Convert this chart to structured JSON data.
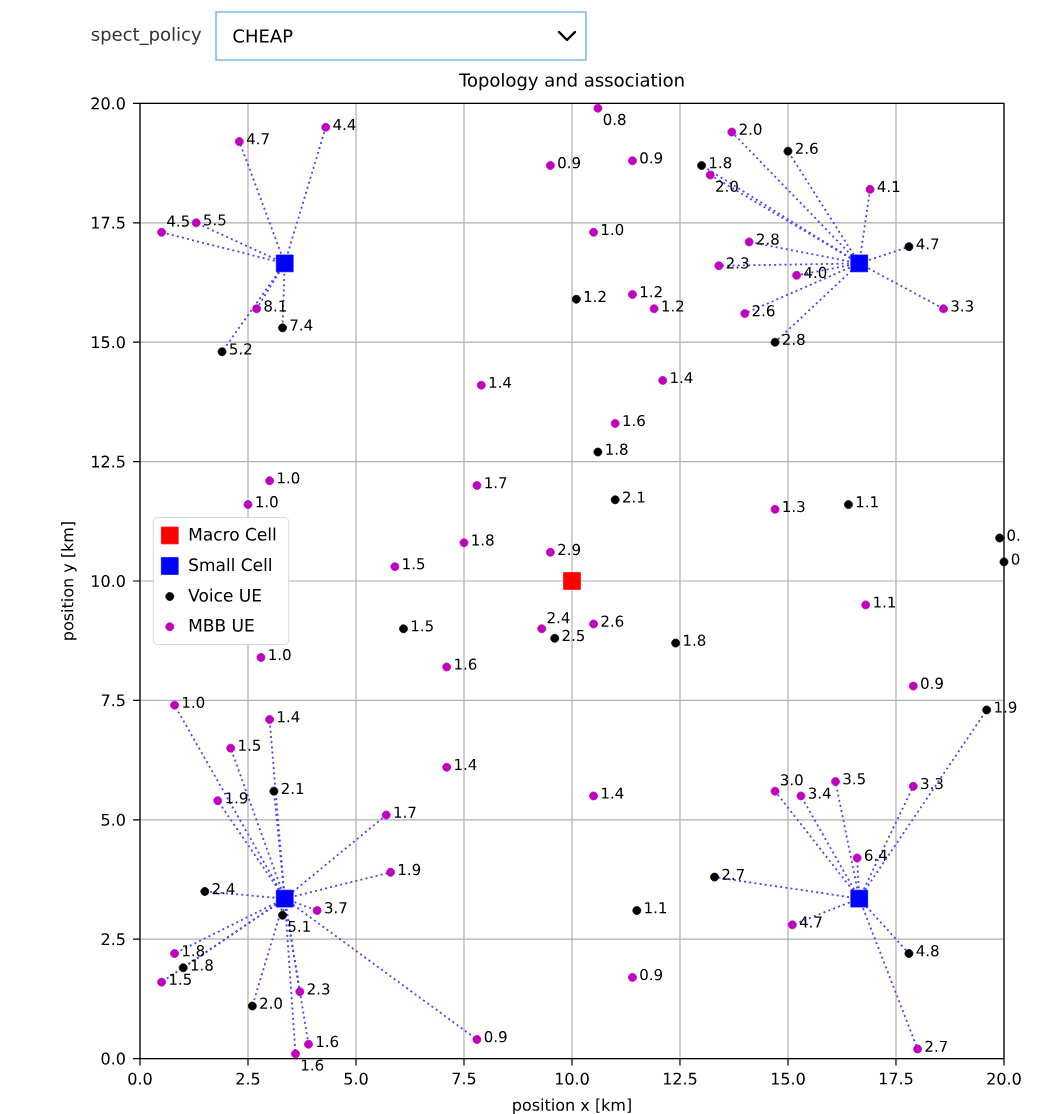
{
  "chart_data": {
    "type": "scatter",
    "title": "Topology and association",
    "xlabel": "position x [km]",
    "ylabel": "position y [km]",
    "annotations": [
      "spect_policy",
      "CHEAP",
      {
        "text": "5.2",
        "x": 1.9,
        "y": 14.8
      },
      {
        "text": "7.4",
        "x": 3.3,
        "y": 15.3
      },
      {
        "text": "1.2",
        "x": 10.1,
        "y": 15.9
      },
      {
        "text": "1.8",
        "x": 13.0,
        "y": 18.7
      },
      {
        "text": "2.6",
        "x": 15.0,
        "y": 19.0
      },
      {
        "text": "4.7",
        "x": 17.8,
        "y": 17.0
      },
      {
        "text": "2.8",
        "x": 14.7,
        "y": 15.0
      },
      {
        "text": "1.8",
        "x": 10.6,
        "y": 12.7
      },
      {
        "text": "2.1",
        "x": 11.0,
        "y": 11.7
      },
      {
        "text": "1.1",
        "x": 16.4,
        "y": 11.6
      },
      {
        "text": "0.",
        "x": 19.9,
        "y": 10.9
      },
      {
        "text": "0",
        "x": 20.0,
        "y": 10.4
      },
      {
        "text": "1.5",
        "x": 6.1,
        "y": 9.0
      },
      {
        "text": "2.5",
        "x": 9.6,
        "y": 8.8
      },
      {
        "text": "1.8",
        "x": 12.4,
        "y": 8.7
      },
      {
        "text": "1.9",
        "x": 19.6,
        "y": 7.3
      },
      {
        "text": "2.1",
        "x": 3.1,
        "y": 5.6
      },
      {
        "text": "2.4",
        "x": 1.5,
        "y": 3.5
      },
      {
        "text": "5.1",
        "x": 3.3,
        "y": 3.0
      },
      {
        "text": "1.8",
        "x": 1.0,
        "y": 1.9
      },
      {
        "text": "2.0",
        "x": 2.6,
        "y": 1.1
      },
      {
        "text": "2.7",
        "x": 13.3,
        "y": 3.8
      },
      {
        "text": "1.1",
        "x": 11.5,
        "y": 3.1
      },
      {
        "text": "4.8",
        "x": 17.8,
        "y": 2.2
      },
      {
        "text": "4.7",
        "x": 2.3,
        "y": 19.2
      },
      {
        "text": "4.4",
        "x": 4.3,
        "y": 19.5
      },
      {
        "text": "5.5",
        "x": 1.3,
        "y": 17.5
      },
      {
        "text": "4.5",
        "x": 0.5,
        "y": 17.3
      },
      {
        "text": "8.1",
        "x": 2.7,
        "y": 15.7
      },
      {
        "text": "1.4",
        "x": 7.9,
        "y": 14.1
      },
      {
        "text": "0.9",
        "x": 9.5,
        "y": 18.7
      },
      {
        "text": "0.8",
        "x": 10.6,
        "y": 19.9
      },
      {
        "text": "0.9",
        "x": 11.4,
        "y": 18.8
      },
      {
        "text": "2.0",
        "x": 13.2,
        "y": 18.5
      },
      {
        "text": "2.0",
        "x": 13.7,
        "y": 19.4
      },
      {
        "text": "4.1",
        "x": 16.9,
        "y": 18.2
      },
      {
        "text": "3.3",
        "x": 18.6,
        "y": 15.7
      },
      {
        "text": "2.8",
        "x": 14.1,
        "y": 17.1
      },
      {
        "text": "2.3",
        "x": 13.4,
        "y": 16.6
      },
      {
        "text": "4.0",
        "x": 15.2,
        "y": 16.4
      },
      {
        "text": "2.6",
        "x": 14.0,
        "y": 15.6
      },
      {
        "text": "1.0",
        "x": 10.5,
        "y": 17.3
      },
      {
        "text": "1.2",
        "x": 11.4,
        "y": 16.0
      },
      {
        "text": "1.2",
        "x": 11.9,
        "y": 15.7
      },
      {
        "text": "1.4",
        "x": 12.1,
        "y": 14.2
      },
      {
        "text": "1.0",
        "x": 3.0,
        "y": 12.1
      },
      {
        "text": "1.0",
        "x": 2.5,
        "y": 11.6
      },
      {
        "text": "1.7",
        "x": 7.8,
        "y": 12.0
      },
      {
        "text": "1.8",
        "x": 7.5,
        "y": 10.8
      },
      {
        "text": "1.5",
        "x": 5.9,
        "y": 10.3
      },
      {
        "text": "2.9",
        "x": 9.5,
        "y": 10.6
      },
      {
        "text": "1.6",
        "x": 7.1,
        "y": 8.2
      },
      {
        "text": "2.4",
        "x": 9.3,
        "y": 9.0
      },
      {
        "text": "1.0",
        "x": 2.8,
        "y": 8.4
      },
      {
        "text": "1.0",
        "x": 0.8,
        "y": 7.4
      },
      {
        "text": "1.4",
        "x": 3.0,
        "y": 7.1
      },
      {
        "text": "1.5",
        "x": 2.1,
        "y": 6.5
      },
      {
        "text": "1.6",
        "x": 11.0,
        "y": 13.3
      },
      {
        "text": "1.3",
        "x": 14.7,
        "y": 11.5
      },
      {
        "text": "1.1",
        "x": 16.8,
        "y": 9.5
      },
      {
        "text": "2.6",
        "x": 10.5,
        "y": 9.1
      },
      {
        "text": "0.9",
        "x": 17.9,
        "y": 7.8
      },
      {
        "text": "1.9",
        "x": 1.8,
        "y": 5.4
      },
      {
        "text": "1.4",
        "x": 7.1,
        "y": 6.1
      },
      {
        "text": "1.7",
        "x": 5.7,
        "y": 5.1
      },
      {
        "text": "1.9",
        "x": 5.8,
        "y": 3.9
      },
      {
        "text": "3.7",
        "x": 4.1,
        "y": 3.1
      },
      {
        "text": "1.8",
        "x": 0.8,
        "y": 2.2
      },
      {
        "text": "1.5",
        "x": 0.5,
        "y": 1.6
      },
      {
        "text": "2.3",
        "x": 3.7,
        "y": 1.4
      },
      {
        "text": "1.6",
        "x": 3.9,
        "y": 0.3
      },
      {
        "text": "1.6",
        "x": 3.6,
        "y": 0.1
      },
      {
        "text": "0.9",
        "x": 7.8,
        "y": 0.4
      },
      {
        "text": "1.4",
        "x": 10.5,
        "y": 5.5
      },
      {
        "text": "0.9",
        "x": 11.4,
        "y": 1.7
      },
      {
        "text": "3.0",
        "x": 14.7,
        "y": 5.6
      },
      {
        "text": "3.4",
        "x": 15.3,
        "y": 5.5
      },
      {
        "text": "3.5",
        "x": 16.1,
        "y": 5.8
      },
      {
        "text": "3.3",
        "x": 17.9,
        "y": 5.7
      },
      {
        "text": "6.4",
        "x": 16.6,
        "y": 4.2
      },
      {
        "text": "4.7",
        "x": 15.1,
        "y": 2.8
      },
      {
        "text": "2.7",
        "x": 18.0,
        "y": 0.2
      }
    ],
    "xlim": [
      0,
      20
    ],
    "ylim": [
      0,
      20
    ],
    "xticks": [
      {
        "value": 0,
        "label": "0.0"
      },
      {
        "value": 2.5,
        "label": "2.5"
      },
      {
        "value": 5,
        "label": "5.0"
      },
      {
        "value": 7.5,
        "label": "7.5"
      },
      {
        "value": 10,
        "label": "10.0"
      },
      {
        "value": 12.5,
        "label": "12.5"
      },
      {
        "value": 15,
        "label": "15.0"
      },
      {
        "value": 17.5,
        "label": "17.5"
      },
      {
        "value": 20,
        "label": "20.0"
      }
    ],
    "yticks": [
      {
        "value": 0,
        "label": "0.0"
      },
      {
        "value": 2.5,
        "label": "2.5"
      },
      {
        "value": 5,
        "label": "5.0"
      },
      {
        "value": 7.5,
        "label": "7.5"
      },
      {
        "value": 10,
        "label": "10.0"
      },
      {
        "value": 12.5,
        "label": "12.5"
      },
      {
        "value": 15,
        "label": "15.0"
      },
      {
        "value": 17.5,
        "label": "17.5"
      },
      {
        "value": 20,
        "label": "20.0"
      }
    ],
    "grid": true,
    "legend": "left",
    "series": [
      {
        "type": "line",
        "color": "#4444ff",
        "line_style": "dotted",
        "x": [
          3.35,
          2.3
        ],
        "values": [
          16.65,
          19.2
        ]
      },
      {
        "type": "line",
        "color": "#4444ff",
        "line_style": "dotted",
        "x": [
          3.35,
          4.3
        ],
        "values": [
          16.65,
          19.5
        ]
      },
      {
        "type": "line",
        "color": "#4444ff",
        "line_style": "dotted",
        "x": [
          3.35,
          1.3
        ],
        "values": [
          16.65,
          17.5
        ]
      },
      {
        "type": "line",
        "color": "#4444ff",
        "line_style": "dotted",
        "x": [
          3.35,
          0.5
        ],
        "values": [
          16.65,
          17.3
        ]
      },
      {
        "type": "line",
        "color": "#4444ff",
        "line_style": "dotted",
        "x": [
          3.35,
          2.7
        ],
        "values": [
          16.65,
          15.7
        ]
      },
      {
        "type": "line",
        "color": "#4444ff",
        "line_style": "dotted",
        "x": [
          3.35,
          3.3
        ],
        "values": [
          16.65,
          15.3
        ]
      },
      {
        "type": "line",
        "color": "#4444ff",
        "line_style": "dotted",
        "x": [
          3.35,
          1.9
        ],
        "values": [
          16.65,
          14.8
        ]
      },
      {
        "type": "line",
        "color": "#4444ff",
        "line_style": "dotted",
        "x": [
          16.65,
          13.0
        ],
        "values": [
          16.65,
          18.7
        ]
      },
      {
        "type": "line",
        "color": "#4444ff",
        "line_style": "dotted",
        "x": [
          16.65,
          13.2
        ],
        "values": [
          16.65,
          18.5
        ]
      },
      {
        "type": "line",
        "color": "#4444ff",
        "line_style": "dotted",
        "x": [
          16.65,
          13.7
        ],
        "values": [
          16.65,
          19.4
        ]
      },
      {
        "type": "line",
        "color": "#4444ff",
        "line_style": "dotted",
        "x": [
          16.65,
          15.0
        ],
        "values": [
          16.65,
          19.0
        ]
      },
      {
        "type": "line",
        "color": "#4444ff",
        "line_style": "dotted",
        "x": [
          16.65,
          16.9
        ],
        "values": [
          16.65,
          18.2
        ]
      },
      {
        "type": "line",
        "color": "#4444ff",
        "line_style": "dotted",
        "x": [
          16.65,
          17.8
        ],
        "values": [
          16.65,
          17.0
        ]
      },
      {
        "type": "line",
        "color": "#4444ff",
        "line_style": "dotted",
        "x": [
          16.65,
          18.6
        ],
        "values": [
          16.65,
          15.7
        ]
      },
      {
        "type": "line",
        "color": "#4444ff",
        "line_style": "dotted",
        "x": [
          16.65,
          14.1
        ],
        "values": [
          16.65,
          17.1
        ]
      },
      {
        "type": "line",
        "color": "#4444ff",
        "line_style": "dotted",
        "x": [
          16.65,
          13.4
        ],
        "values": [
          16.65,
          16.6
        ]
      },
      {
        "type": "line",
        "color": "#4444ff",
        "line_style": "dotted",
        "x": [
          16.65,
          15.2
        ],
        "values": [
          16.65,
          16.4
        ]
      },
      {
        "type": "line",
        "color": "#4444ff",
        "line_style": "dotted",
        "x": [
          16.65,
          14.0
        ],
        "values": [
          16.65,
          15.6
        ]
      },
      {
        "type": "line",
        "color": "#4444ff",
        "line_style": "dotted",
        "x": [
          16.65,
          14.7
        ],
        "values": [
          16.65,
          15.0
        ]
      },
      {
        "type": "line",
        "color": "#4444ff",
        "line_style": "dotted",
        "x": [
          3.35,
          0.8
        ],
        "values": [
          3.35,
          7.4
        ]
      },
      {
        "type": "line",
        "color": "#4444ff",
        "line_style": "dotted",
        "x": [
          3.35,
          3.0
        ],
        "values": [
          3.35,
          7.1
        ]
      },
      {
        "type": "line",
        "color": "#4444ff",
        "line_style": "dotted",
        "x": [
          3.35,
          2.1
        ],
        "values": [
          3.35,
          6.5
        ]
      },
      {
        "type": "line",
        "color": "#4444ff",
        "line_style": "dotted",
        "x": [
          3.35,
          1.8
        ],
        "values": [
          3.35,
          5.4
        ]
      },
      {
        "type": "line",
        "color": "#4444ff",
        "line_style": "dotted",
        "x": [
          3.35,
          3.1
        ],
        "values": [
          3.35,
          5.6
        ]
      },
      {
        "type": "line",
        "color": "#4444ff",
        "line_style": "dotted",
        "x": [
          3.35,
          5.7
        ],
        "values": [
          3.35,
          5.1
        ]
      },
      {
        "type": "line",
        "color": "#4444ff",
        "line_style": "dotted",
        "x": [
          3.35,
          5.8
        ],
        "values": [
          3.35,
          3.9
        ]
      },
      {
        "type": "line",
        "color": "#4444ff",
        "line_style": "dotted",
        "x": [
          3.35,
          1.5
        ],
        "values": [
          3.35,
          3.5
        ]
      },
      {
        "type": "line",
        "color": "#4444ff",
        "line_style": "dotted",
        "x": [
          3.35,
          3.3
        ],
        "values": [
          3.35,
          3.0
        ]
      },
      {
        "type": "line",
        "color": "#4444ff",
        "line_style": "dotted",
        "x": [
          3.35,
          4.1
        ],
        "values": [
          3.35,
          3.1
        ]
      },
      {
        "type": "line",
        "color": "#4444ff",
        "line_style": "dotted",
        "x": [
          3.35,
          0.8
        ],
        "values": [
          3.35,
          2.2
        ]
      },
      {
        "type": "line",
        "color": "#4444ff",
        "line_style": "dotted",
        "x": [
          3.35,
          1.0
        ],
        "values": [
          3.35,
          1.9
        ]
      },
      {
        "type": "line",
        "color": "#4444ff",
        "line_style": "dotted",
        "x": [
          3.35,
          0.5
        ],
        "values": [
          3.35,
          1.6
        ]
      },
      {
        "type": "line",
        "color": "#4444ff",
        "line_style": "dotted",
        "x": [
          3.35,
          3.7
        ],
        "values": [
          3.35,
          1.4
        ]
      },
      {
        "type": "line",
        "color": "#4444ff",
        "line_style": "dotted",
        "x": [
          3.35,
          2.6
        ],
        "values": [
          3.35,
          1.1
        ]
      },
      {
        "type": "line",
        "color": "#4444ff",
        "line_style": "dotted",
        "x": [
          3.35,
          3.9
        ],
        "values": [
          3.35,
          0.3
        ]
      },
      {
        "type": "line",
        "color": "#4444ff",
        "line_style": "dotted",
        "x": [
          3.35,
          3.6
        ],
        "values": [
          3.35,
          0.1
        ]
      },
      {
        "type": "line",
        "color": "#4444ff",
        "line_style": "dotted",
        "x": [
          3.35,
          7.8
        ],
        "values": [
          3.35,
          0.4
        ]
      },
      {
        "type": "line",
        "color": "#4444ff",
        "line_style": "dotted",
        "x": [
          16.65,
          14.7
        ],
        "values": [
          3.35,
          5.6
        ]
      },
      {
        "type": "line",
        "color": "#4444ff",
        "line_style": "dotted",
        "x": [
          16.65,
          15.3
        ],
        "values": [
          3.35,
          5.5
        ]
      },
      {
        "type": "line",
        "color": "#4444ff",
        "line_style": "dotted",
        "x": [
          16.65,
          16.1
        ],
        "values": [
          3.35,
          5.8
        ]
      },
      {
        "type": "line",
        "color": "#4444ff",
        "line_style": "dotted",
        "x": [
          16.65,
          17.9
        ],
        "values": [
          3.35,
          5.7
        ]
      },
      {
        "type": "line",
        "color": "#4444ff",
        "line_style": "dotted",
        "x": [
          16.65,
          16.6
        ],
        "values": [
          3.35,
          4.2
        ]
      },
      {
        "type": "line",
        "color": "#4444ff",
        "line_style": "dotted",
        "x": [
          16.65,
          13.3
        ],
        "values": [
          3.35,
          3.8
        ]
      },
      {
        "type": "line",
        "color": "#4444ff",
        "line_style": "dotted",
        "x": [
          16.65,
          15.1
        ],
        "values": [
          3.35,
          2.8
        ]
      },
      {
        "type": "line",
        "color": "#4444ff",
        "line_style": "dotted",
        "x": [
          16.65,
          17.8
        ],
        "values": [
          3.35,
          2.2
        ]
      },
      {
        "type": "line",
        "color": "#4444ff",
        "line_style": "dotted",
        "x": [
          16.65,
          18.0
        ],
        "values": [
          3.35,
          0.2
        ]
      },
      {
        "type": "line",
        "color": "#4444ff",
        "line_style": "dotted",
        "x": [
          16.65,
          19.6
        ],
        "values": [
          3.35,
          7.3
        ]
      },
      {
        "name": "Macro Cell",
        "color": "#ff0000",
        "marker": "square",
        "x": [
          10.0
        ],
        "values": [
          10.0
        ]
      },
      {
        "name": "Small Cell",
        "color": "#0000ff",
        "marker": "square",
        "x": [
          3.35,
          16.65,
          3.35,
          16.65
        ],
        "values": [
          16.65,
          16.65,
          3.35,
          3.35
        ]
      },
      {
        "name": "Voice UE",
        "color": "#000000",
        "marker": "circle",
        "x": [
          1.9,
          3.3,
          10.1,
          13.0,
          15.0,
          17.8,
          14.7,
          10.6,
          11.0,
          16.4,
          19.9,
          20.0,
          6.1,
          9.6,
          12.4,
          19.6,
          3.1,
          1.5,
          3.3,
          1.0,
          2.6,
          13.3,
          11.5,
          17.8
        ],
        "values": [
          14.8,
          15.3,
          15.9,
          18.7,
          19.0,
          17.0,
          15.0,
          12.7,
          11.7,
          11.6,
          10.9,
          10.4,
          9.0,
          8.8,
          8.7,
          7.3,
          5.6,
          3.5,
          3.0,
          1.9,
          1.1,
          3.8,
          3.1,
          2.2
        ]
      },
      {
        "name": "MBB UE",
        "color": "#bf00bf",
        "marker": "circle",
        "x": [
          2.3,
          4.3,
          1.3,
          0.5,
          2.7,
          7.9,
          9.5,
          10.6,
          11.4,
          13.2,
          13.7,
          16.9,
          18.6,
          14.1,
          13.4,
          15.2,
          14.0,
          10.5,
          11.4,
          11.9,
          12.1,
          3.0,
          2.5,
          7.8,
          7.5,
          5.9,
          9.5,
          7.1,
          9.3,
          2.8,
          0.8,
          3.0,
          2.1,
          11.0,
          14.7,
          16.8,
          10.5,
          17.9,
          1.8,
          7.1,
          5.7,
          5.8,
          4.1,
          0.8,
          0.5,
          3.7,
          3.9,
          3.6,
          7.8,
          10.5,
          11.4,
          14.7,
          15.3,
          16.1,
          17.9,
          16.6,
          15.1,
          18.0
        ],
        "values": [
          19.2,
          19.5,
          17.5,
          17.3,
          15.7,
          14.1,
          18.7,
          19.9,
          18.8,
          18.5,
          19.4,
          18.2,
          15.7,
          17.1,
          16.6,
          16.4,
          15.6,
          17.3,
          16.0,
          15.7,
          14.2,
          12.1,
          11.6,
          12.0,
          10.8,
          10.3,
          10.6,
          8.2,
          9.0,
          8.4,
          7.4,
          7.1,
          6.5,
          13.3,
          11.5,
          9.5,
          9.1,
          7.8,
          5.4,
          6.1,
          5.1,
          3.9,
          3.1,
          2.2,
          1.6,
          1.4,
          0.3,
          0.1,
          0.4,
          5.5,
          1.7,
          5.6,
          5.5,
          5.8,
          5.7,
          4.2,
          2.8,
          0.2
        ]
      }
    ]
  }
}
